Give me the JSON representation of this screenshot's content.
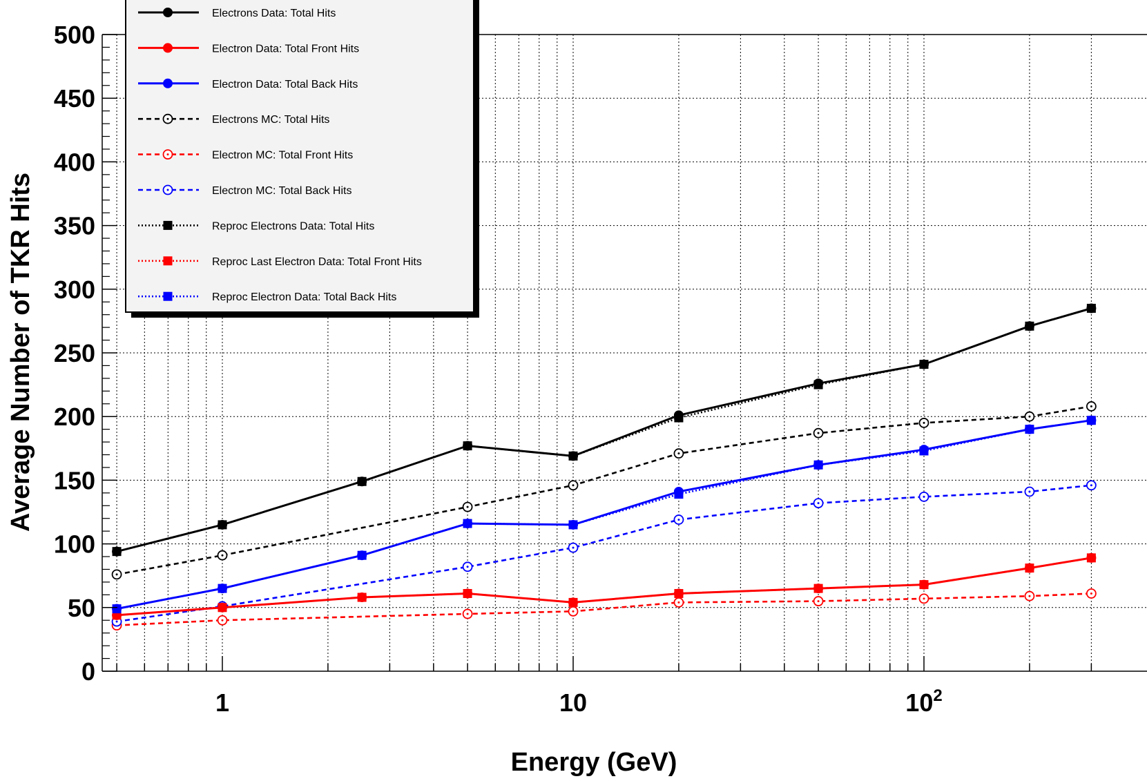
{
  "chart_data": {
    "type": "line",
    "title": "",
    "xlabel": "Energy (GeV)",
    "ylabel": "Average Number of TKR Hits",
    "x_scale": "log",
    "xlim": [
      0.5,
      300
    ],
    "ylim": [
      0,
      500
    ],
    "grid": true,
    "legend_position": "top-left",
    "x_tick_labels": [
      {
        "value": 1,
        "base": "1",
        "exp": ""
      },
      {
        "value": 10,
        "base": "10",
        "exp": ""
      },
      {
        "value": 100,
        "base": "10",
        "exp": "2"
      }
    ],
    "y_ticks": [
      0,
      50,
      100,
      150,
      200,
      250,
      300,
      350,
      400,
      450,
      500
    ],
    "series": [
      {
        "name": "Electrons Data: Total Hits",
        "color": "#000000",
        "line": "solid",
        "marker": "filled-circle",
        "x": [
          0.5,
          1,
          2.5,
          5,
          10,
          20,
          50,
          100,
          200,
          300
        ],
        "y": [
          94,
          115,
          149,
          177,
          169,
          201,
          226,
          241,
          271,
          285
        ]
      },
      {
        "name": "Electron Data: Total Front Hits",
        "color": "#ff0000",
        "line": "solid",
        "marker": "filled-circle",
        "x": [
          0.5,
          1,
          2.5,
          5,
          10,
          20,
          50,
          100,
          200,
          300
        ],
        "y": [
          44,
          50,
          58,
          61,
          54,
          61,
          65,
          68,
          81,
          89
        ]
      },
      {
        "name": "Electron Data: Total Back Hits",
        "color": "#0000ff",
        "line": "solid",
        "marker": "filled-circle",
        "x": [
          0.5,
          1,
          2.5,
          5,
          10,
          20,
          50,
          100,
          200,
          300
        ],
        "y": [
          49,
          65,
          91,
          116,
          115,
          141,
          162,
          174,
          190,
          197
        ]
      },
      {
        "name": "Electrons MC: Total Hits",
        "color": "#000000",
        "line": "dashed",
        "marker": "open-circle",
        "x": [
          0.5,
          1,
          5,
          10,
          20,
          50,
          100,
          200,
          300
        ],
        "y": [
          76,
          91,
          129,
          146,
          171,
          187,
          195,
          200,
          208
        ]
      },
      {
        "name": "Electron MC: Total Front Hits",
        "color": "#ff0000",
        "line": "dashed",
        "marker": "open-circle",
        "x": [
          0.5,
          1,
          5,
          10,
          20,
          50,
          100,
          200,
          300
        ],
        "y": [
          36,
          40,
          45,
          47,
          54,
          55,
          57,
          59,
          61
        ]
      },
      {
        "name": "Electron MC: Total Back Hits",
        "color": "#0000ff",
        "line": "dashed",
        "marker": "open-circle",
        "x": [
          0.5,
          1,
          5,
          10,
          20,
          50,
          100,
          200,
          300
        ],
        "y": [
          39,
          51,
          82,
          97,
          119,
          132,
          137,
          141,
          146
        ]
      },
      {
        "name": "Reproc Electrons Data: Total Hits",
        "color": "#000000",
        "line": "dotted",
        "marker": "filled-square",
        "x": [
          0.5,
          1,
          2.5,
          5,
          10,
          20,
          50,
          100,
          200,
          300
        ],
        "y": [
          94,
          115,
          149,
          177,
          169,
          199,
          225,
          241,
          271,
          285
        ]
      },
      {
        "name": "Reproc Last Electron Data: Total Front Hits",
        "color": "#ff0000",
        "line": "dotted",
        "marker": "filled-square",
        "x": [
          0.5,
          1,
          2.5,
          5,
          10,
          20,
          50,
          100,
          200,
          300
        ],
        "y": [
          44,
          50,
          58,
          61,
          54,
          61,
          65,
          68,
          81,
          89
        ]
      },
      {
        "name": "Reproc Electron Data: Total Back Hits",
        "color": "#0000ff",
        "line": "dotted",
        "marker": "filled-square",
        "x": [
          0.5,
          1,
          2.5,
          5,
          10,
          20,
          50,
          100,
          200,
          300
        ],
        "y": [
          49,
          65,
          91,
          116,
          115,
          139,
          162,
          173,
          190,
          197
        ]
      }
    ]
  }
}
